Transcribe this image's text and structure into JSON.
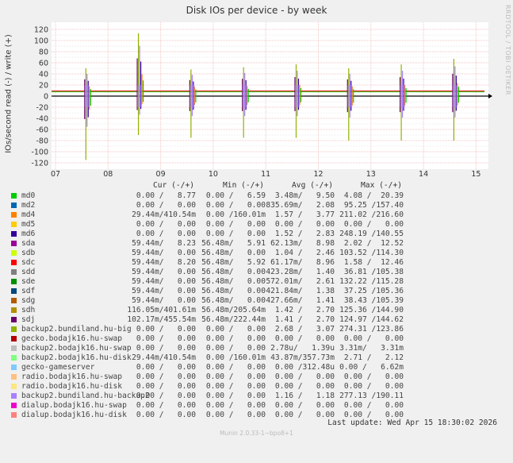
{
  "title": "Disk IOs per device - by week",
  "side_text": "RRDTOOL / TOBI OETIKER",
  "chart_data": {
    "type": "line",
    "title": "Disk IOs per device - by week",
    "ylabel": "IOs/second read (-) / write (+)",
    "ylim": [
      -125,
      125
    ],
    "yticks": [
      -120,
      -100,
      -80,
      -60,
      -40,
      -20,
      0,
      20,
      40,
      60,
      80,
      100,
      120
    ],
    "xticks": [
      "07",
      "08",
      "09",
      "10",
      "11",
      "12",
      "13",
      "14",
      "15"
    ],
    "grid": true,
    "baseline": {
      "series": "sdc",
      "write": 9,
      "read": 0
    },
    "spikes": [
      {
        "day": 0.6,
        "write": 50,
        "read": -115
      },
      {
        "day": 1.6,
        "write": 113,
        "read": -70
      },
      {
        "day": 2.6,
        "write": 48,
        "read": -75
      },
      {
        "day": 3.6,
        "write": 52,
        "read": -75
      },
      {
        "day": 4.6,
        "write": 57,
        "read": -75
      },
      {
        "day": 5.6,
        "write": 50,
        "read": -80
      },
      {
        "day": 6.6,
        "write": 57,
        "read": -80
      },
      {
        "day": 7.6,
        "write": 67,
        "read": -80
      }
    ]
  },
  "legend": {
    "headers": [
      "Cur (-/+)",
      "Min (-/+)",
      "Avg (-/+)",
      "Max (-/+)"
    ],
    "rows": [
      {
        "name": "md0",
        "color": "#00cc00",
        "cur": "0.00 /   8.77",
        "min": "0.00 /   6.59",
        "avg": "3.48m/   9.50",
        "max": "4.08 /  20.39"
      },
      {
        "name": "md2",
        "color": "#0066b3",
        "cur": "0.00 /   0.00",
        "min": "0.00 /   0.00",
        "avg": "835.69m/   2.08",
        "max": "95.25 /157.40"
      },
      {
        "name": "md4",
        "color": "#ff8000",
        "cur": "29.44m/410.54m",
        "min": "0.00 /160.01m",
        "avg": "1.57 /   3.77",
        "max": "211.02 /216.60"
      },
      {
        "name": "md5",
        "color": "#ffcc00",
        "cur": "0.00 /   0.00",
        "min": "0.00 /   0.00",
        "avg": "0.00 /   0.00",
        "max": "0.00 /   0.00"
      },
      {
        "name": "md6",
        "color": "#330099",
        "cur": "0.00 /   0.00",
        "min": "0.00 /   0.00",
        "avg": "1.52 /   2.83",
        "max": "248.19 /140.55"
      },
      {
        "name": "sda",
        "color": "#990099",
        "cur": "59.44m/   8.23",
        "min": "56.48m/   5.91",
        "avg": "62.13m/   8.98",
        "max": "2.02 /  12.52"
      },
      {
        "name": "sdb",
        "color": "#ccff00",
        "cur": "59.44m/   0.00",
        "min": "56.48m/   0.00",
        "avg": "1.04 /   2.46",
        "max": "103.52 /114.30"
      },
      {
        "name": "sdc",
        "color": "#ff0000",
        "cur": "59.44m/   8.20",
        "min": "56.48m/   5.92",
        "avg": "61.17m/   8.96",
        "max": "1.58 /  12.46"
      },
      {
        "name": "sdd",
        "color": "#808080",
        "cur": "59.44m/   0.00",
        "min": "56.48m/   0.00",
        "avg": "423.28m/   1.40",
        "max": "36.81 /105.38"
      },
      {
        "name": "sde",
        "color": "#008f00",
        "cur": "59.44m/   0.00",
        "min": "56.48m/   0.00",
        "avg": "572.01m/   2.61",
        "max": "132.22 /115.28"
      },
      {
        "name": "sdf",
        "color": "#00487d",
        "cur": "59.44m/   0.00",
        "min": "56.48m/   0.00",
        "avg": "421.84m/   1.38",
        "max": "37.25 /105.36"
      },
      {
        "name": "sdg",
        "color": "#b35a00",
        "cur": "59.44m/   0.00",
        "min": "56.48m/   0.00",
        "avg": "427.66m/   1.41",
        "max": "38.43 /105.39"
      },
      {
        "name": "sdh",
        "color": "#b38f00",
        "cur": "116.05m/401.61m",
        "min": "56.48m/205.64m",
        "avg": "1.42 /   2.70",
        "max": "125.36 /144.90"
      },
      {
        "name": "sdj",
        "color": "#6b006b",
        "cur": "102.17m/455.54m",
        "min": "56.48m/222.44m",
        "avg": "1.41 /   2.70",
        "max": "124.97 /144.62"
      },
      {
        "name": "backup2.bundiland.hu-big",
        "color": "#8fb300",
        "cur": "0.00 /   0.00",
        "min": "0.00 /   0.00",
        "avg": "2.68 /   3.07",
        "max": "274.31 /123.86"
      },
      {
        "name": "gecko.bodajk16.hu-swap",
        "color": "#b30000",
        "cur": "0.00 /   0.00",
        "min": "0.00 /   0.00",
        "avg": "0.00 /   0.00",
        "max": "0.00 /   0.00"
      },
      {
        "name": "backup2.bodajk16.hu-swap",
        "color": "#bebebe",
        "cur": "0.00 /   0.00",
        "min": "0.00 /   0.00",
        "avg": "2.78u/   1.39u",
        "max": "3.31m/   3.31m"
      },
      {
        "name": "backup2.bodajk16.hu-disk",
        "color": "#80ff80",
        "cur": "29.44m/410.54m",
        "min": "0.00 /160.01m",
        "avg": "43.87m/357.73m",
        "max": "2.71 /   2.12"
      },
      {
        "name": "gecko-gameserver",
        "color": "#80c9ff",
        "cur": "0.00 /   0.00",
        "min": "0.00 /   0.00",
        "avg": "0.00 /312.48u",
        "max": "0.00 /   6.62m"
      },
      {
        "name": "radio.bodajk16.hu-swap",
        "color": "#ffc080",
        "cur": "0.00 /   0.00",
        "min": "0.00 /   0.00",
        "avg": "0.00 /   0.00",
        "max": "0.00 /   0.00"
      },
      {
        "name": "radio.bodajk16.hu-disk",
        "color": "#ffe680",
        "cur": "0.00 /   0.00",
        "min": "0.00 /   0.00",
        "avg": "0.00 /   0.00",
        "max": "0.00 /   0.00"
      },
      {
        "name": "backup2.bundiland.hu-backup2",
        "color": "#aa80ff",
        "cur": "0.00 /   0.00",
        "min": "0.00 /   0.00",
        "avg": "1.16 /   1.18",
        "max": "277.13 /190.11"
      },
      {
        "name": "dialup.bodajk16.hu-swap",
        "color": "#ee00cc",
        "cur": "0.00 /   0.00",
        "min": "0.00 /   0.00",
        "avg": "0.00 /   0.00",
        "max": "0.00 /   0.00"
      },
      {
        "name": "dialup.bodajk16.hu-disk",
        "color": "#ff8080",
        "cur": "0.00 /   0.00",
        "min": "0.00 /   0.00",
        "avg": "0.00 /   0.00",
        "max": "0.00 /   0.00"
      }
    ]
  },
  "last_update": "Last update: Wed Apr 15 18:30:02 2026",
  "footer": "Munin 2.0.33-1~bpo8+1"
}
